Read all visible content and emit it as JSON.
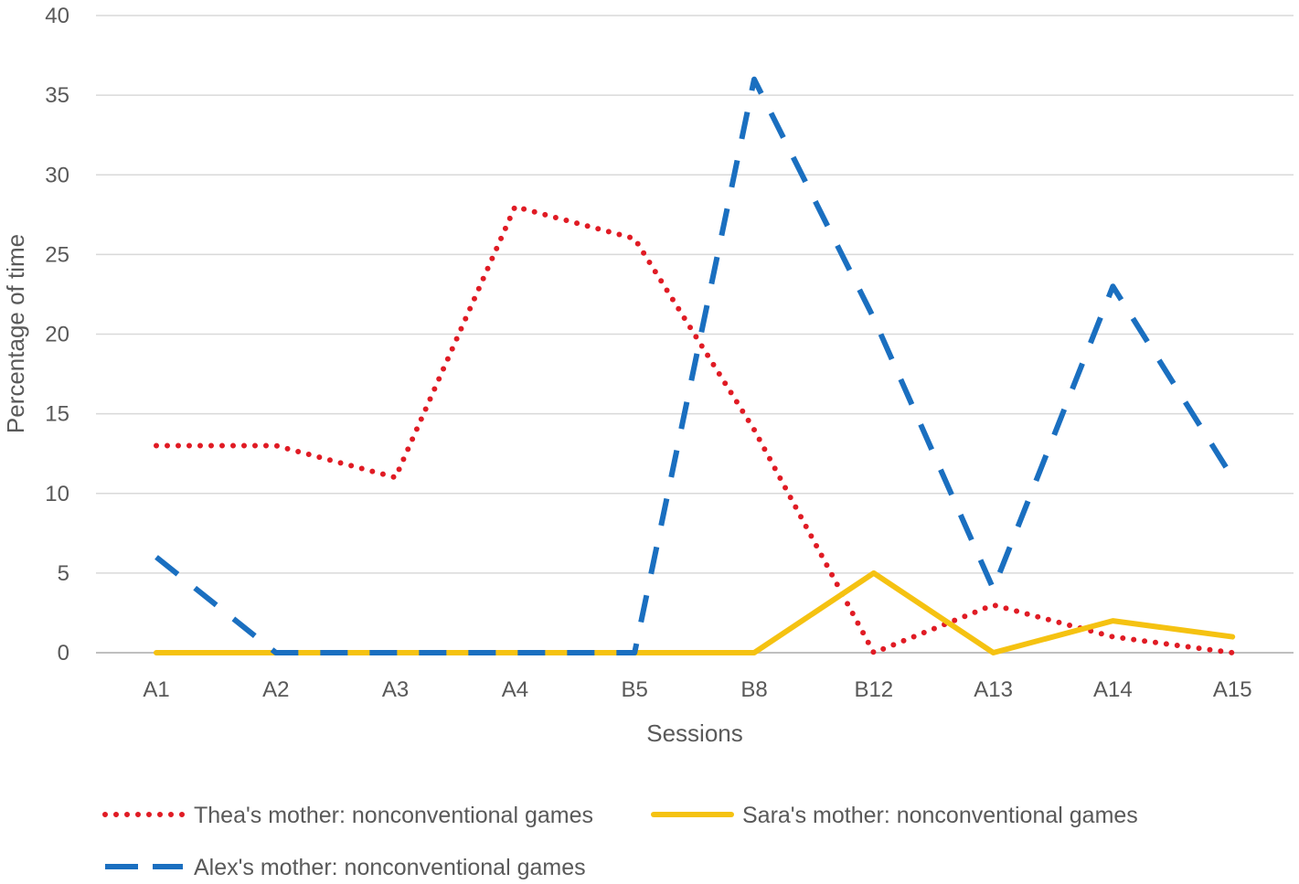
{
  "chart_data": {
    "type": "line",
    "xlabel": "Sessions",
    "ylabel": "Percentage of time",
    "ylim": [
      0,
      40
    ],
    "yticks": [
      0,
      5,
      10,
      15,
      20,
      25,
      30,
      35,
      40
    ],
    "grid": true,
    "legend_position": "bottom",
    "categories": [
      "A1",
      "A2",
      "A3",
      "A4",
      "B5",
      "B8",
      "B12",
      "A13",
      "A14",
      "A15"
    ],
    "series": [
      {
        "name": "Thea's mother: nonconventional games",
        "color": "#e01b24",
        "style": "dotted",
        "values": [
          13,
          13,
          11,
          28,
          26,
          14,
          0,
          3,
          1,
          0
        ]
      },
      {
        "name": "Sara's mother: nonconventional games",
        "color": "#f5c211",
        "style": "solid",
        "values": [
          0,
          0,
          0,
          0,
          0,
          0,
          5,
          0,
          2,
          1
        ]
      },
      {
        "name": "Alex's mother: nonconventional games",
        "color": "#1a6fc0",
        "style": "dashed",
        "values": [
          6,
          0,
          0,
          0,
          0,
          36,
          21,
          4,
          23,
          11
        ]
      }
    ]
  }
}
